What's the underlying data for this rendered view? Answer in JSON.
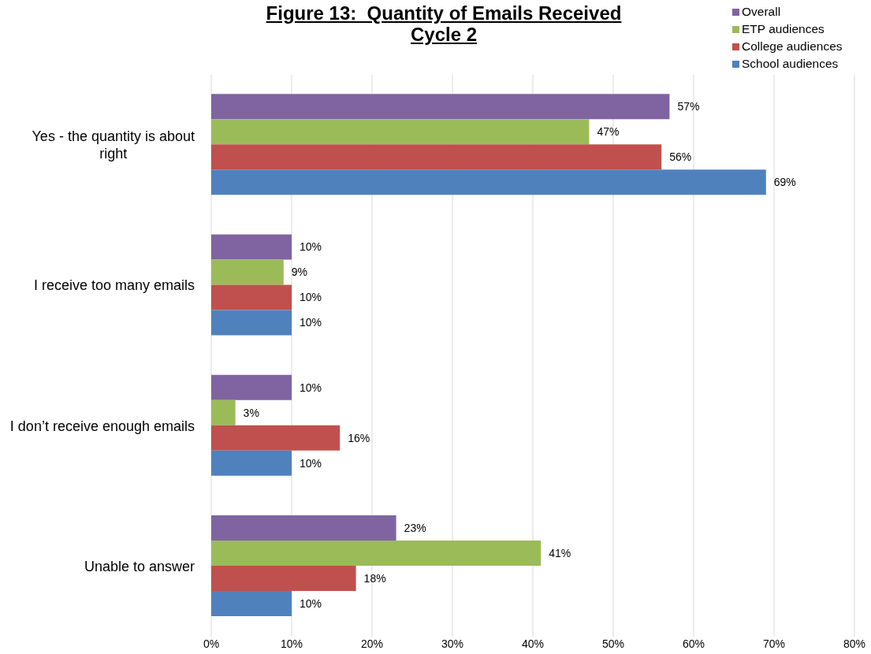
{
  "chart_data": {
    "type": "bar",
    "orientation": "horizontal",
    "title": "Figure 13:  Quantity of Emails Received\nCycle 2",
    "categories": [
      "Yes - the quantity is about right",
      "I receive too many emails",
      "I don’t receive enough emails",
      "Unable to answer"
    ],
    "series": [
      {
        "name": "Overall",
        "color": "#8064a2",
        "values": [
          57,
          10,
          10,
          23
        ],
        "value_labels": [
          "57%",
          "10%",
          "10%",
          "23%"
        ]
      },
      {
        "name": "ETP audiences",
        "color": "#9bbb59",
        "values": [
          47,
          9,
          3,
          41
        ],
        "value_labels": [
          "47%",
          "9%",
          "3%",
          "41%"
        ]
      },
      {
        "name": "College audiences",
        "color": "#c0504d",
        "values": [
          56,
          10,
          16,
          18
        ],
        "value_labels": [
          "56%",
          "10%",
          "16%",
          "18%"
        ]
      },
      {
        "name": "School audiences",
        "color": "#4f81bd",
        "values": [
          69,
          10,
          10,
          10
        ],
        "value_labels": [
          "69%",
          "10%",
          "10%",
          "10%"
        ]
      }
    ],
    "xlim": [
      0,
      80
    ],
    "xticks": [
      {
        "value": 0,
        "label": "0%"
      },
      {
        "value": 10,
        "label": "10%"
      },
      {
        "value": 20,
        "label": "20%"
      },
      {
        "value": 30,
        "label": "30%"
      },
      {
        "value": 40,
        "label": "40%"
      },
      {
        "value": 50,
        "label": "50%"
      },
      {
        "value": 60,
        "label": "60%"
      },
      {
        "value": 70,
        "label": "70%"
      },
      {
        "value": 80,
        "label": "80%"
      }
    ],
    "grid": "x",
    "legend": "top right"
  }
}
